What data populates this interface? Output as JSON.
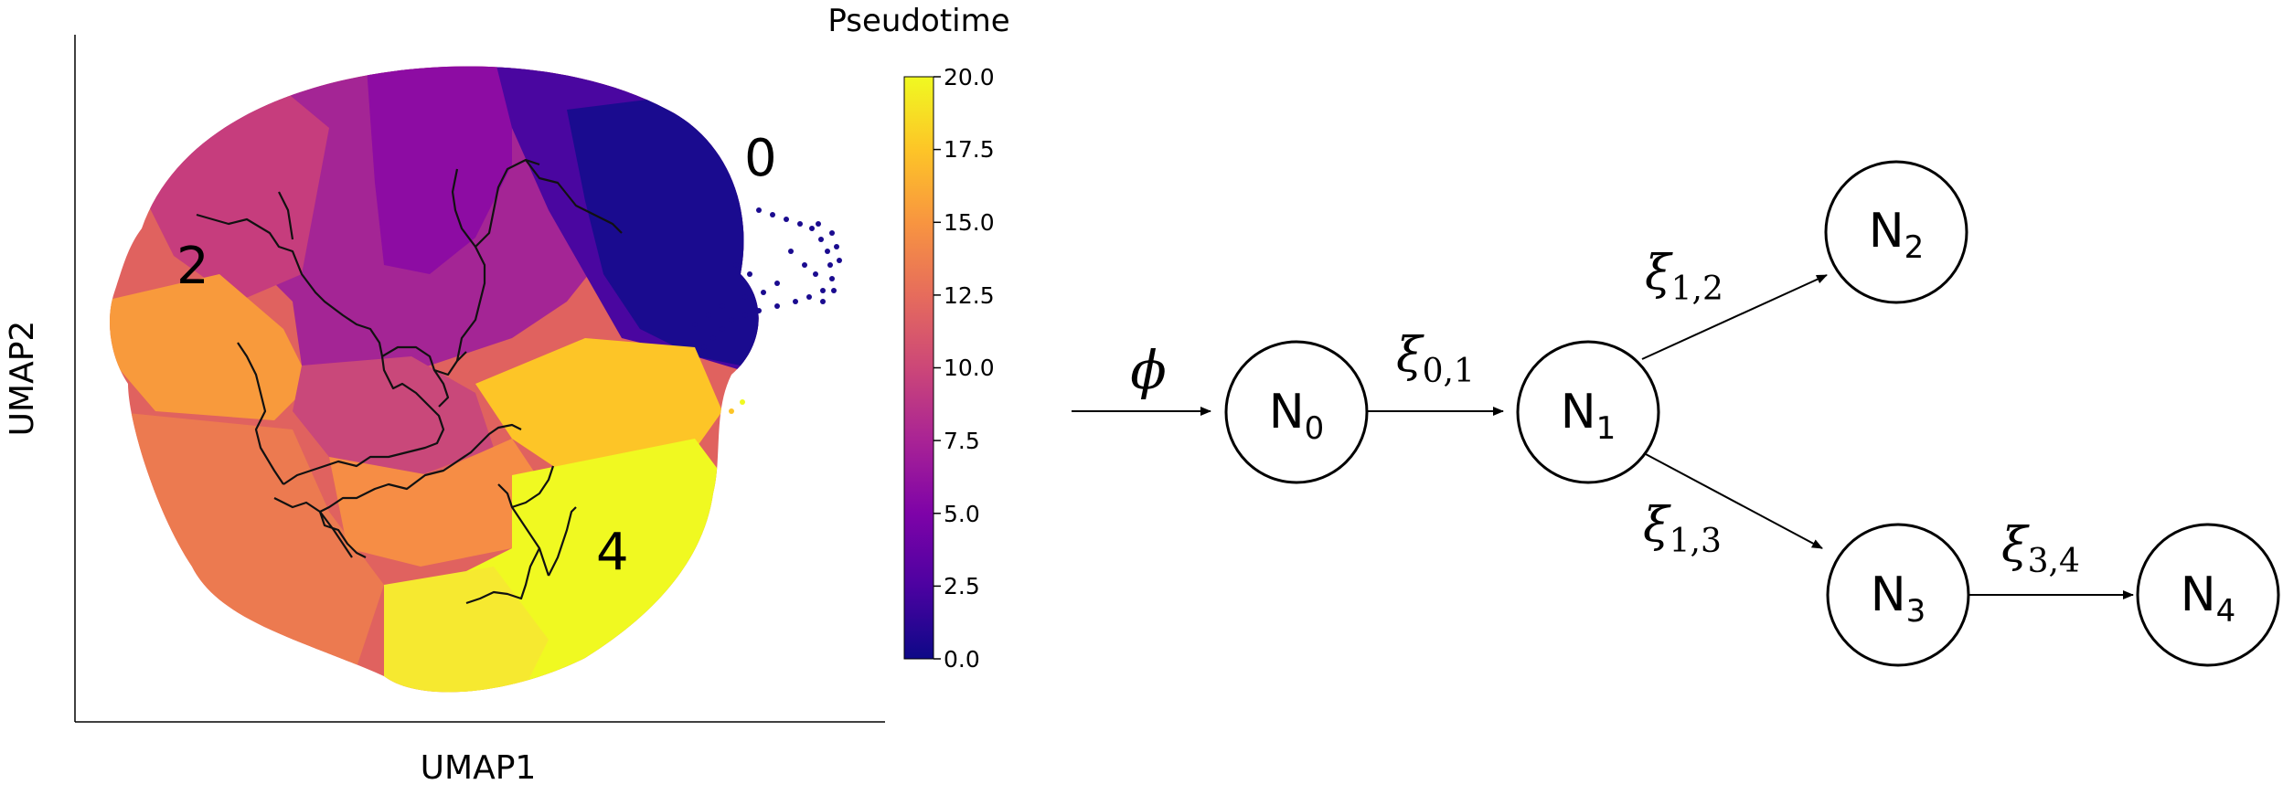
{
  "umap": {
    "xlabel": "UMAP1",
    "ylabel": "UMAP2",
    "cluster_labels": [
      "0",
      "2",
      "4"
    ]
  },
  "colorbar": {
    "title": "Pseudotime",
    "ticks": [
      "0.0",
      "2.5",
      "5.0",
      "7.5",
      "10.0",
      "12.5",
      "15.0",
      "17.5",
      "20.0"
    ],
    "range": [
      0,
      20
    ],
    "colormap": "plasma"
  },
  "graph": {
    "input_symbol": "ϕ",
    "nodes": [
      {
        "letter": "N",
        "sub": "0"
      },
      {
        "letter": "N",
        "sub": "1"
      },
      {
        "letter": "N",
        "sub": "2"
      },
      {
        "letter": "N",
        "sub": "3"
      },
      {
        "letter": "N",
        "sub": "4"
      }
    ],
    "edges": [
      {
        "symbol": "ξ",
        "sub": "0,1"
      },
      {
        "symbol": "ξ",
        "sub": "1,2"
      },
      {
        "symbol": "ξ",
        "sub": "1,3"
      },
      {
        "symbol": "ξ",
        "sub": "3,4"
      }
    ]
  }
}
